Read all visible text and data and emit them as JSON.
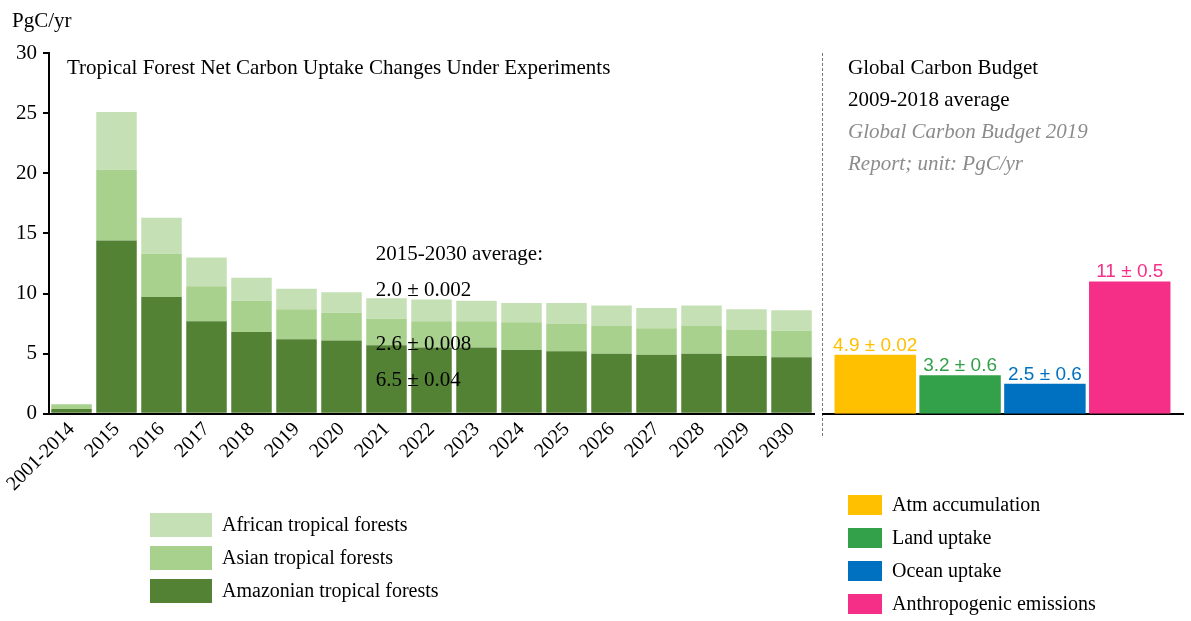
{
  "chart_data": [
    {
      "type": "bar",
      "title": "Tropical Forest Net Carbon Uptake Changes Under Experiments",
      "ylabel": "PgC/yr",
      "categories": [
        "2001-2014",
        "2015",
        "2016",
        "2017",
        "2018",
        "2019",
        "2020",
        "2021",
        "2022",
        "2023",
        "2024",
        "2025",
        "2026",
        "2027",
        "2028",
        "2029",
        "2030"
      ],
      "series": [
        {
          "name": "Amazonian tropical forests",
          "color": "#548235",
          "values": [
            0.4,
            14.4,
            9.7,
            7.7,
            6.8,
            6.2,
            6.1,
            5.7,
            5.5,
            5.5,
            5.3,
            5.2,
            5.0,
            4.9,
            5.0,
            4.8,
            4.7
          ]
        },
        {
          "name": "Asian tropical forests",
          "color": "#a9d18e",
          "values": [
            0.4,
            5.9,
            3.6,
            2.9,
            2.6,
            2.5,
            2.3,
            2.2,
            2.2,
            2.2,
            2.3,
            2.3,
            2.3,
            2.2,
            2.3,
            2.2,
            2.2
          ]
        },
        {
          "name": "African tropical forests",
          "color": "#c5e0b4",
          "values": [
            null,
            4.8,
            3.0,
            2.4,
            1.9,
            1.7,
            1.7,
            1.7,
            1.8,
            1.7,
            1.6,
            1.7,
            1.7,
            1.7,
            1.7,
            1.7,
            1.7
          ]
        }
      ],
      "stacked": true,
      "ylim": [
        0,
        30
      ],
      "yticks": [
        0,
        5,
        10,
        15,
        20,
        25,
        30
      ],
      "grid": false,
      "legend": "bottom",
      "annotations": [
        "2015-2030 average:",
        "2.0 ± 0.002",
        "2.6 ± 0.008",
        "6.5 ± 0.04"
      ]
    },
    {
      "type": "bar",
      "title": "Global Carbon Budget 2009-2018 average",
      "subtitle": "Global Carbon Budget 2019 Report; unit: PgC/yr",
      "categories": [
        null
      ],
      "series": [
        {
          "name": "Atm accumulation",
          "color": "#ffc000",
          "values": [
            4.9
          ],
          "value_labels": [
            "4.9 ± 0.02"
          ]
        },
        {
          "name": "Land uptake",
          "color": "#33a04a",
          "values": [
            3.2
          ],
          "value_labels": [
            "3.2 ± 0.6"
          ]
        },
        {
          "name": "Ocean uptake",
          "color": "#0070c0",
          "values": [
            2.5
          ],
          "value_labels": [
            "2.5 ± 0.6"
          ]
        },
        {
          "name": "Anthropogenic emissions",
          "color": "#f52f88",
          "values": [
            11
          ],
          "value_labels": [
            "11 ± 0.5"
          ]
        }
      ],
      "ylim": [
        0,
        30
      ],
      "yticks": [
        0,
        5,
        10,
        15,
        20,
        25,
        30
      ],
      "grid": false,
      "legend": "bottom",
      "tick_labels": false
    }
  ]
}
